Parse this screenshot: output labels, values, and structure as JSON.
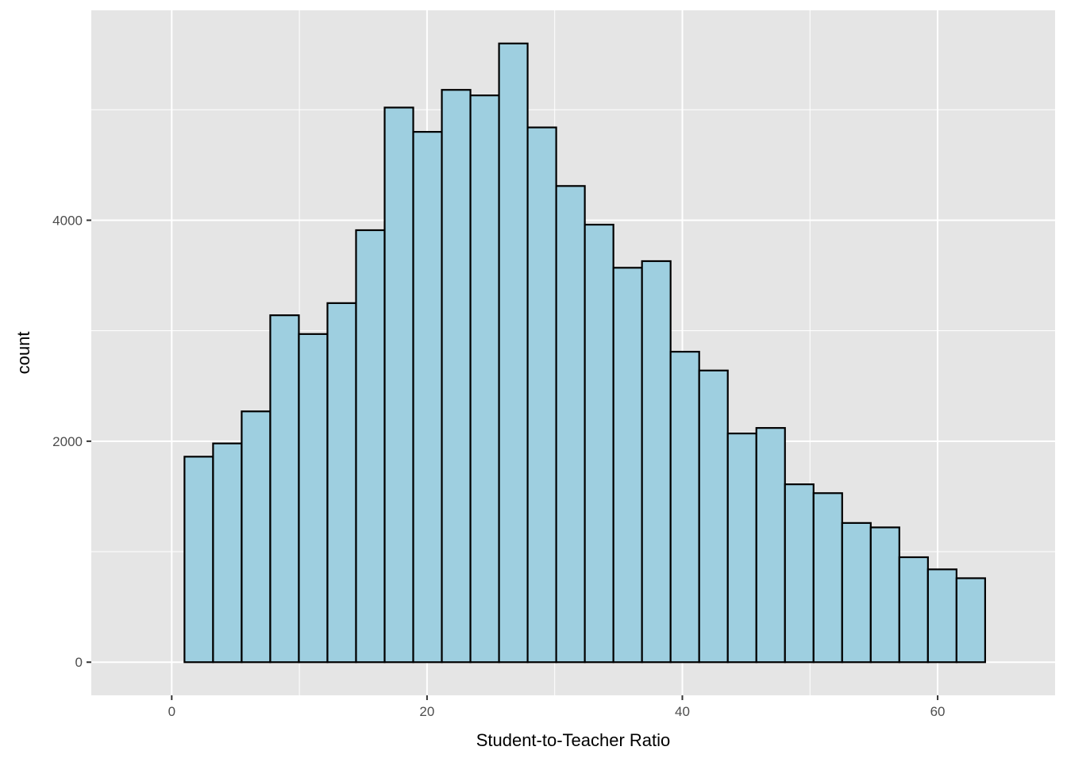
{
  "chart_data": {
    "type": "bar",
    "subtype": "histogram",
    "xlabel": "Student-to-Teacher Ratio",
    "ylabel": "count",
    "xlim": [
      -6.3,
      69.2
    ],
    "ylim": [
      -300,
      5900
    ],
    "x_ticks": [
      0,
      20,
      40,
      60
    ],
    "x_tick_labels": [
      "0",
      "20",
      "40",
      "60"
    ],
    "y_ticks": [
      0,
      2000,
      4000
    ],
    "y_tick_labels": [
      "0",
      "2000",
      "4000"
    ],
    "x_minor_ticks": [
      10,
      30,
      50
    ],
    "y_minor_ticks": [
      1000,
      3000,
      5000
    ],
    "grid": true,
    "bin_edges": [
      1.0,
      3.24,
      5.48,
      7.72,
      9.96,
      12.2,
      14.44,
      16.68,
      18.92,
      21.16,
      23.4,
      25.64,
      27.88,
      30.12,
      32.36,
      34.6,
      36.84,
      39.08,
      41.32,
      43.56,
      45.8,
      48.04,
      50.28,
      52.52,
      54.76,
      57.0,
      59.24,
      61.48,
      63.72
    ],
    "values": [
      1860,
      1980,
      2270,
      3140,
      2970,
      3250,
      3910,
      5020,
      4800,
      5180,
      5130,
      5600,
      4840,
      4310,
      3960,
      3570,
      3630,
      2810,
      2640,
      2070,
      2120,
      1610,
      1530,
      1260,
      1220,
      950,
      840,
      760
    ],
    "colors": {
      "panel_background": "#e5e5e5",
      "grid": "#ffffff",
      "bar_fill": "#9ecfe0",
      "bar_outline": "#000000"
    }
  }
}
